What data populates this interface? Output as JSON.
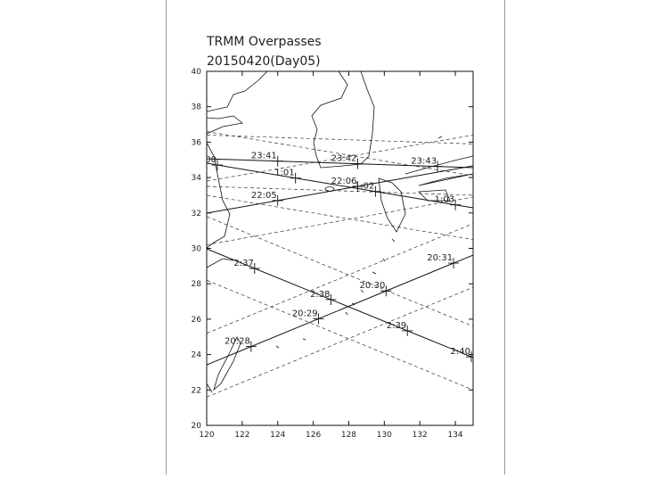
{
  "chart_data": {
    "type": "track-map",
    "title": "TRMM Overpasses",
    "subtitle": "20150420(Day05)",
    "xlim": [
      120,
      135
    ],
    "ylim": [
      20,
      40
    ],
    "xticks": [
      120,
      122,
      124,
      126,
      128,
      130,
      132,
      134
    ],
    "yticks": [
      20,
      22,
      24,
      26,
      28,
      30,
      32,
      34,
      36,
      38,
      40
    ],
    "tracks": [
      {
        "lon": [
          120,
          135
        ],
        "lat": [
          35.06,
          34.56
        ],
        "edges": [
          [
            33.5,
            33.0
          ],
          [
            36.4,
            35.9
          ]
        ],
        "passes": [
          {
            "label": "23:41",
            "lon": 124.0
          },
          {
            "label": "23:42",
            "lon": 128.5
          },
          {
            "label": "23:43",
            "lon": 133.0
          }
        ]
      },
      {
        "lon": [
          120,
          135
        ],
        "lat": [
          31.99,
          34.66
        ],
        "edges": [
          [
            30.2,
            32.9
          ],
          [
            33.8,
            36.4
          ]
        ],
        "passes": [
          {
            "label": "22:05",
            "lon": 124.0
          },
          {
            "label": "22:06",
            "lon": 128.5
          }
        ]
      },
      {
        "lon": [
          120,
          135
        ],
        "lat": [
          34.81,
          32.29
        ],
        "edges": [
          [
            33.0,
            30.5
          ],
          [
            36.6,
            34.1
          ]
        ],
        "passes": [
          {
            "label": "00",
            "lon": 120.6
          },
          {
            "label": "1:01",
            "lon": 125.0
          },
          {
            "label": "1:02",
            "lon": 129.5
          },
          {
            "label": "1:03",
            "lon": 134.0
          }
        ]
      },
      {
        "lon": [
          120,
          135
        ],
        "lat": [
          29.97,
          23.83
        ],
        "edges": [
          [
            28.2,
            22.0
          ],
          [
            31.8,
            25.6
          ]
        ],
        "passes": [
          {
            "label": "2:37",
            "lon": 122.7
          },
          {
            "label": "2:38",
            "lon": 127.0
          },
          {
            "label": "2:39",
            "lon": 131.3
          },
          {
            "label": "2:40",
            "lon": 134.9
          }
        ]
      },
      {
        "lon": [
          120,
          135
        ],
        "lat": [
          23.42,
          29.62
        ],
        "edges": [
          [
            21.6,
            27.8
          ],
          [
            25.2,
            31.4
          ]
        ],
        "passes": [
          {
            "label": "20:28",
            "lon": 122.5
          },
          {
            "label": "20:29",
            "lon": 126.3
          },
          {
            "label": "20:30",
            "lon": 130.1
          },
          {
            "label": "20:31",
            "lon": 133.9
          }
        ]
      }
    ]
  }
}
